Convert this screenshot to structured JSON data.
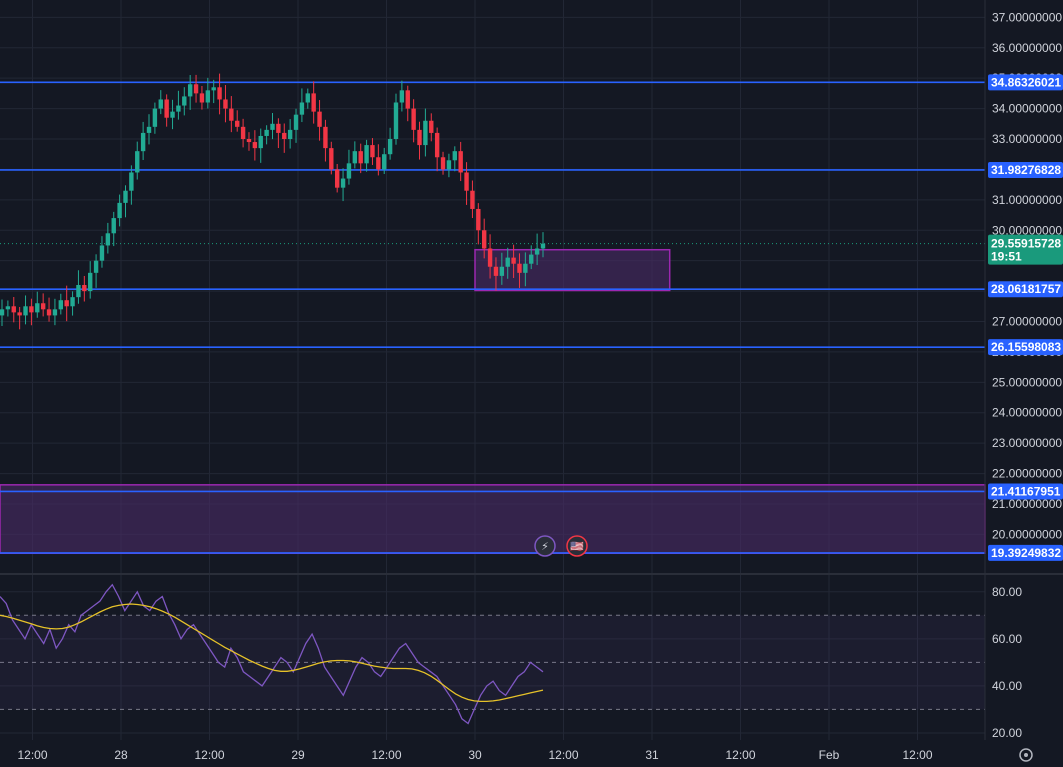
{
  "colors": {
    "background": "#141823",
    "grid": "#222735",
    "up": "#22ab94",
    "down": "#f23645",
    "level_line": "#2962ff",
    "level_tag": "#2962ff",
    "current_tag": "#1a9a7c",
    "zone_fill": "#4a2c66",
    "zone_border": "#9c27b0",
    "rsi_line": "#7e57c2",
    "rsi_ma": "#e6c229",
    "text": "#d1d4dc"
  },
  "chart_data": [
    {
      "type": "candlestick",
      "title": "",
      "ylim": [
        18.83,
        37.57
      ],
      "y_ticks": [
        "37.00000000",
        "36.00000000",
        "35.00000000",
        "34.00000000",
        "33.00000000",
        "32.00000000",
        "31.00000000",
        "30.00000000",
        "29.00000000",
        "28.00000000",
        "27.00000000",
        "26.00000000",
        "25.00000000",
        "24.00000000",
        "23.00000000",
        "22.00000000",
        "21.00000000",
        "20.00000000"
      ],
      "x_ticks": [
        "12:00",
        "28",
        "12:00",
        "29",
        "12:00",
        "30",
        "12:00",
        "31",
        "12:00",
        "Feb",
        "12:00"
      ],
      "grid": true,
      "level_lines": [
        {
          "value": 34.86326021,
          "label": "34.86326021"
        },
        {
          "value": 31.98276828,
          "label": "31.98276828"
        },
        {
          "value": 28.06181757,
          "label": "28.06181757"
        },
        {
          "value": 26.15598083,
          "label": "26.15598083"
        },
        {
          "value": 21.41167951,
          "label": "21.41167951"
        },
        {
          "value": 19.39249832,
          "label": "19.39249832"
        }
      ],
      "current_price": {
        "label": "29.55915728",
        "countdown": "19:51",
        "value": 29.559
      },
      "zones": [
        {
          "name": "demand-zone",
          "y_from": 28.02,
          "y_to": 29.36,
          "x_from": 30.0,
          "x_to": 31.1
        },
        {
          "name": "lower-zone",
          "y_from": 19.38,
          "y_to": 21.63,
          "x_from": 26.6,
          "x_to": 33.5
        }
      ],
      "closes": [
        27.4,
        27.5,
        27.3,
        27.2,
        27.5,
        27.3,
        27.6,
        27.4,
        27.2,
        27.4,
        27.7,
        27.5,
        27.8,
        28.2,
        28.0,
        28.6,
        29.0,
        29.5,
        29.9,
        30.4,
        30.9,
        31.3,
        31.9,
        32.6,
        33.2,
        33.4,
        34.0,
        34.3,
        33.7,
        33.9,
        34.1,
        34.4,
        34.8,
        34.5,
        34.2,
        34.6,
        34.7,
        34.3,
        34.0,
        33.6,
        33.4,
        33.0,
        32.9,
        32.7,
        33.1,
        33.3,
        33.5,
        33.2,
        33.0,
        33.3,
        33.8,
        34.2,
        34.5,
        33.9,
        33.4,
        32.7,
        32.0,
        31.4,
        31.7,
        32.2,
        32.6,
        32.2,
        32.8,
        32.4,
        32.0,
        32.5,
        33.0,
        34.2,
        34.6,
        34.0,
        33.3,
        32.8,
        33.6,
        33.2,
        32.4,
        32.0,
        32.3,
        32.6,
        31.9,
        31.3,
        30.7,
        30.0,
        29.4,
        28.8,
        28.5,
        28.8,
        29.1,
        28.9,
        28.6,
        28.9,
        29.2,
        29.4,
        29.56
      ],
      "rsi": {
        "ylim": [
          17,
          85
        ],
        "ticks": [
          "80.00",
          "60.00",
          "40.00",
          "20.00"
        ],
        "bands": [
          70,
          50,
          30
        ],
        "values": [
          78,
          75,
          68,
          64,
          60,
          66,
          62,
          58,
          64,
          56,
          60,
          66,
          63,
          70,
          72,
          74,
          76,
          80,
          83,
          78,
          72,
          76,
          80,
          74,
          72,
          76,
          78,
          71,
          66,
          60,
          64,
          66,
          62,
          58,
          54,
          50,
          48,
          56,
          52,
          46,
          44,
          42,
          40,
          44,
          48,
          52,
          50,
          46,
          52,
          58,
          62,
          56,
          48,
          44,
          40,
          36,
          42,
          48,
          52,
          50,
          46,
          44,
          48,
          52,
          56,
          58,
          54,
          50,
          48,
          46,
          44,
          40,
          36,
          32,
          26,
          24,
          30,
          36,
          40,
          42,
          38,
          36,
          40,
          44,
          46,
          50,
          48,
          46
        ],
        "ma": [
          70,
          69.5,
          68.8,
          68,
          67.2,
          66.4,
          65.5,
          64.8,
          64.4,
          64.2,
          64.4,
          65,
          66,
          67.2,
          68.6,
          70,
          71.4,
          72.6,
          73.6,
          74.2,
          74.6,
          74.8,
          74.6,
          74.2,
          73.6,
          72.8,
          71.8,
          70.6,
          69.2,
          67.6,
          66,
          64.4,
          62.8,
          61.2,
          59.6,
          58,
          56.4,
          55,
          53.6,
          52.2,
          50.8,
          49.6,
          48.4,
          47.4,
          46.6,
          46.2,
          46.2,
          46.6,
          47.2,
          48,
          48.8,
          49.6,
          50.2,
          50.6,
          50.8,
          50.8,
          50.6,
          50.2,
          49.6,
          49,
          48.4,
          48,
          47.6,
          47.4,
          47.4,
          47.4,
          47.2,
          46.6,
          45.6,
          44.2,
          42.4,
          40.4,
          38.4,
          36.6,
          35.2,
          34.2,
          33.6,
          33.4,
          33.4,
          33.6,
          34,
          34.6,
          35.2,
          35.8,
          36.4,
          37,
          37.6,
          38.2
        ]
      }
    }
  ],
  "badges": [
    {
      "name": "lightning-icon",
      "glyph": "⚡"
    },
    {
      "name": "us-flag-icon",
      "glyph": "🇺🇸"
    }
  ],
  "settings_icon": "gear-icon"
}
